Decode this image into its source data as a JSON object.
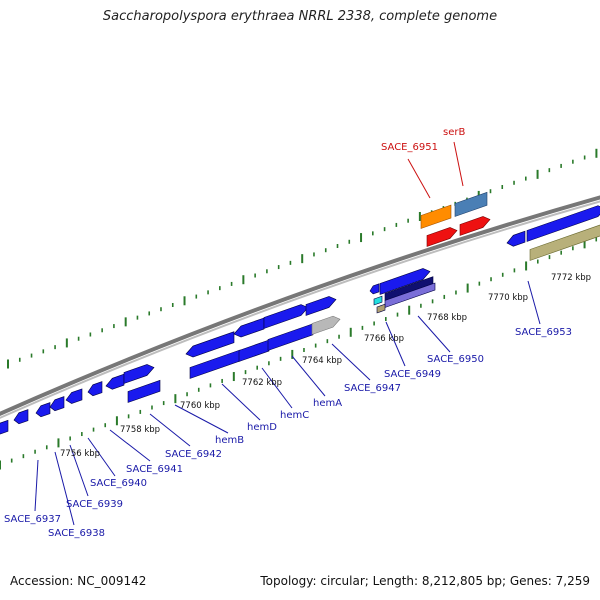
{
  "title": "Saccharopolyspora erythraea NRRL 2338, complete genome",
  "footer": {
    "accession": "Accession: NC_009142",
    "summary": "Topology: circular; Length: 8,212,805 bp; Genes: 7,259"
  },
  "colors": {
    "backbone": "#8a8a8a",
    "tick": "#2a7a2a",
    "cds": "#1a1aee",
    "rna": "#ee1111",
    "label_blue": "#1a1aa8",
    "label_red": "#cc1111",
    "orange": "#ff8c00",
    "steelblue": "#4a7fb5",
    "khaki": "#b8b07a",
    "cyan": "#22e0e0",
    "navy": "#101070",
    "slate": "#7a6ed8",
    "tan": "#b0a070",
    "grey": "#b8b8b8"
  },
  "scale_labels": [
    "7756 kbp",
    "7758 kbp",
    "7760 kbp",
    "7762 kbp",
    "7764 kbp",
    "7766 kbp",
    "7768 kbp",
    "7770 kbp",
    "7772 kbp"
  ],
  "gene_labels": [
    {
      "text": "SACE_6937",
      "color": "blue"
    },
    {
      "text": "SACE_6938",
      "color": "blue"
    },
    {
      "text": "SACE_6939",
      "color": "blue"
    },
    {
      "text": "SACE_6940",
      "color": "blue"
    },
    {
      "text": "SACE_6941",
      "color": "blue"
    },
    {
      "text": "SACE_6942",
      "color": "blue"
    },
    {
      "text": "hemB",
      "color": "blue"
    },
    {
      "text": "hemD",
      "color": "blue"
    },
    {
      "text": "hemC",
      "color": "blue"
    },
    {
      "text": "hemA",
      "color": "blue"
    },
    {
      "text": "SACE_6947",
      "color": "blue"
    },
    {
      "text": "SACE_6949",
      "color": "blue"
    },
    {
      "text": "SACE_6950",
      "color": "blue"
    },
    {
      "text": "SACE_6951",
      "color": "red"
    },
    {
      "text": "serB",
      "color": "red"
    },
    {
      "text": "SACE_6953",
      "color": "blue"
    }
  ]
}
